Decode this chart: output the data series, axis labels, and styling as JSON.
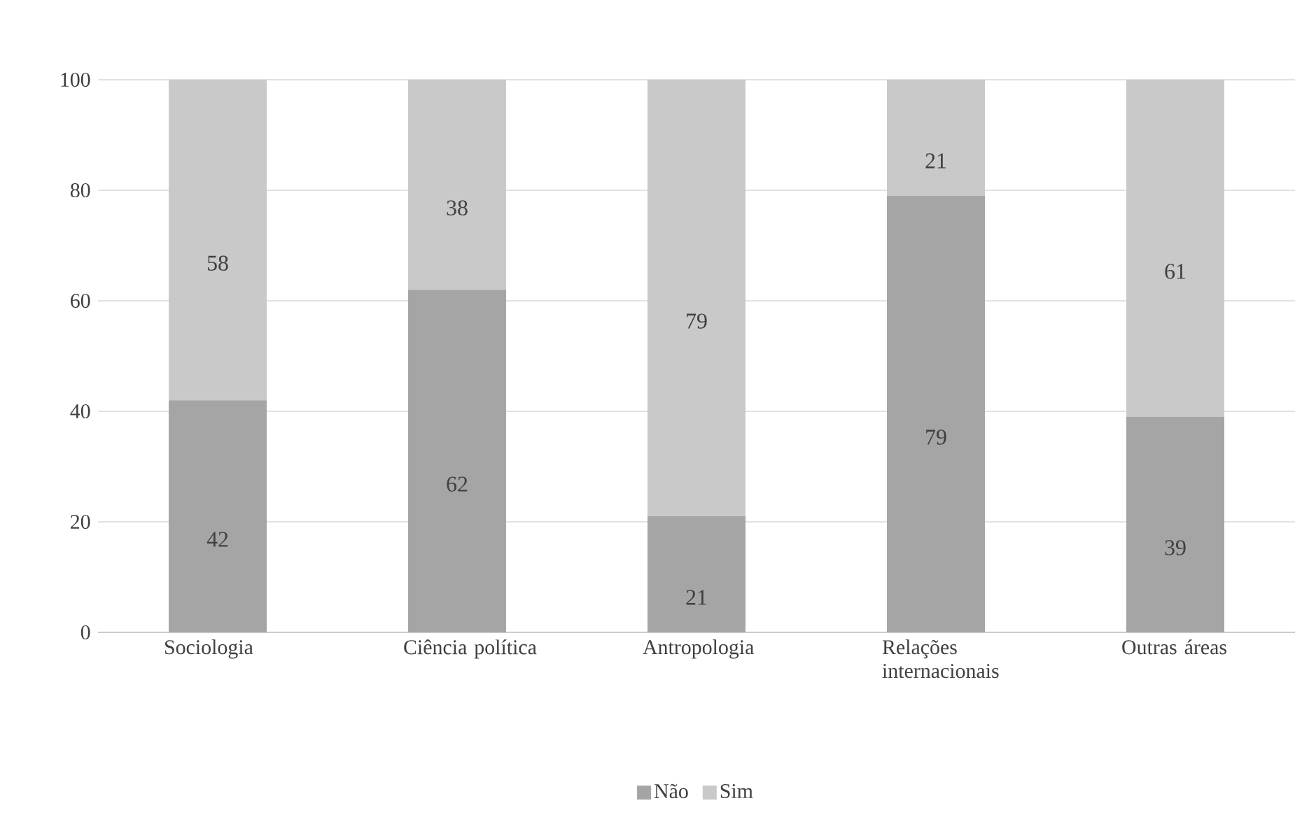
{
  "chart_data": {
    "type": "bar",
    "stacked": true,
    "categories": [
      "Sociologia",
      "Ciência política",
      "Antropologia",
      "Relações internacionais",
      "Outras áreas"
    ],
    "series": [
      {
        "name": "Não",
        "color": "#a5a5a5",
        "values": [
          42,
          62,
          21,
          79,
          39
        ]
      },
      {
        "name": "Sim",
        "color": "#c9c9c9",
        "values": [
          58,
          38,
          79,
          21,
          61
        ]
      }
    ],
    "ylim": [
      0,
      100
    ],
    "yticks": [
      0,
      20,
      40,
      60,
      80,
      100
    ],
    "grid": "y",
    "legend": "bottom",
    "data_labels": true
  }
}
